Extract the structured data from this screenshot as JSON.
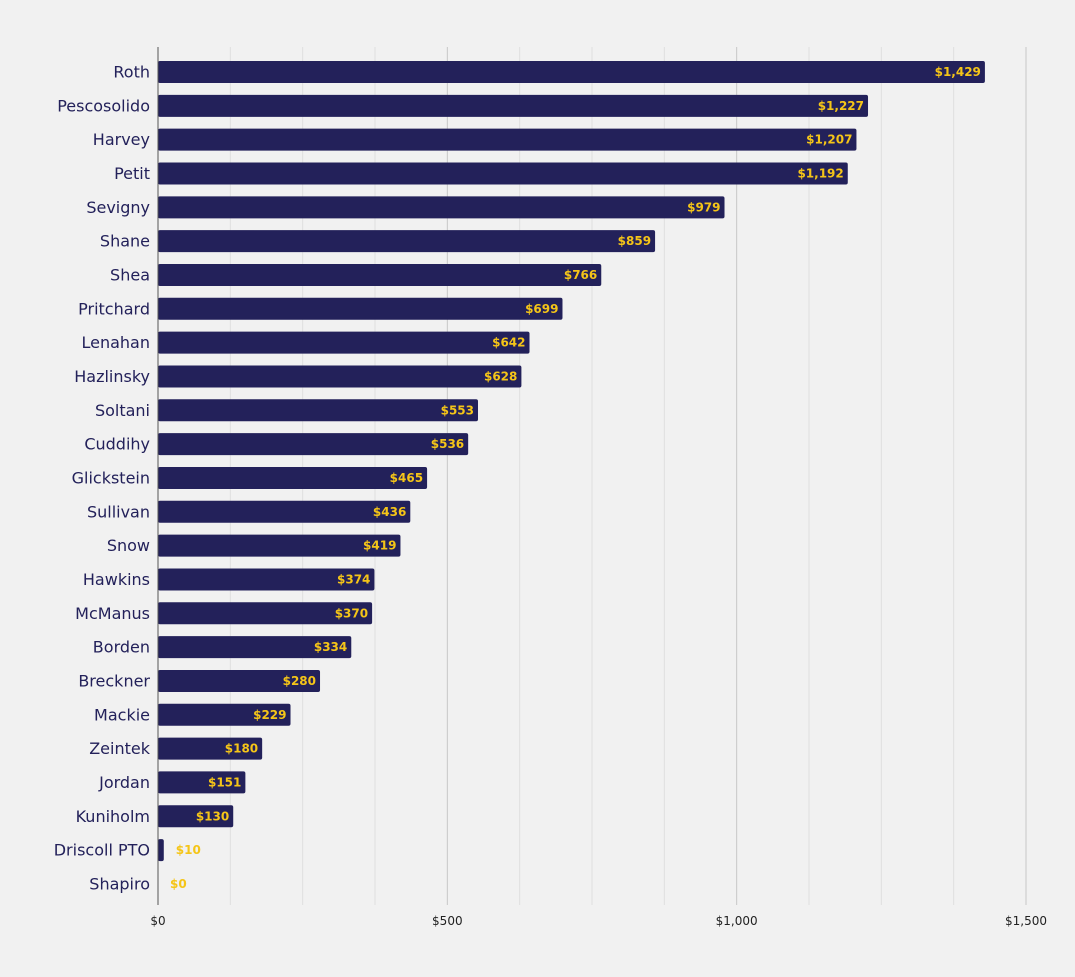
{
  "chart_data": {
    "type": "bar",
    "orientation": "horizontal",
    "categories": [
      "Roth",
      "Pescosolido",
      "Harvey",
      "Petit",
      "Sevigny",
      "Shane",
      "Shea",
      "Pritchard",
      "Lenahan",
      "Hazlinsky",
      "Soltani",
      "Cuddihy",
      "Glickstein",
      "Sullivan",
      "Snow",
      "Hawkins",
      "McManus",
      "Borden",
      "Breckner",
      "Mackie",
      "Zeintek",
      "Jordan",
      "Kuniholm",
      "Driscoll PTO",
      "Shapiro"
    ],
    "values": [
      1429,
      1227,
      1207,
      1192,
      979,
      859,
      766,
      699,
      642,
      628,
      553,
      536,
      465,
      436,
      419,
      374,
      370,
      334,
      280,
      229,
      180,
      151,
      130,
      10,
      0
    ],
    "value_labels": [
      "$1,429",
      "$1,227",
      "$1,207",
      "$1,192",
      "$979",
      "$859",
      "$766",
      "$699",
      "$642",
      "$628",
      "$553",
      "$536",
      "$465",
      "$436",
      "$419",
      "$374",
      "$370",
      "$334",
      "$280",
      "$229",
      "$180",
      "$151",
      "$130",
      "$10",
      "$0"
    ],
    "xlim": [
      0,
      1500
    ],
    "x_ticks": [
      0,
      500,
      1000,
      1500
    ],
    "x_tick_labels": [
      "$0",
      "$500",
      "$1,000",
      "$1,500"
    ],
    "grid": true,
    "title": "",
    "xlabel": "",
    "ylabel": "",
    "colors": {
      "bar": "#23215a",
      "value_label": "#f5c518",
      "category_label": "#23215a",
      "major_grid": "#c8c8c8",
      "minor_grid": "#e0e0e0",
      "axis": "#555555",
      "background": "#f1f1f1"
    }
  }
}
